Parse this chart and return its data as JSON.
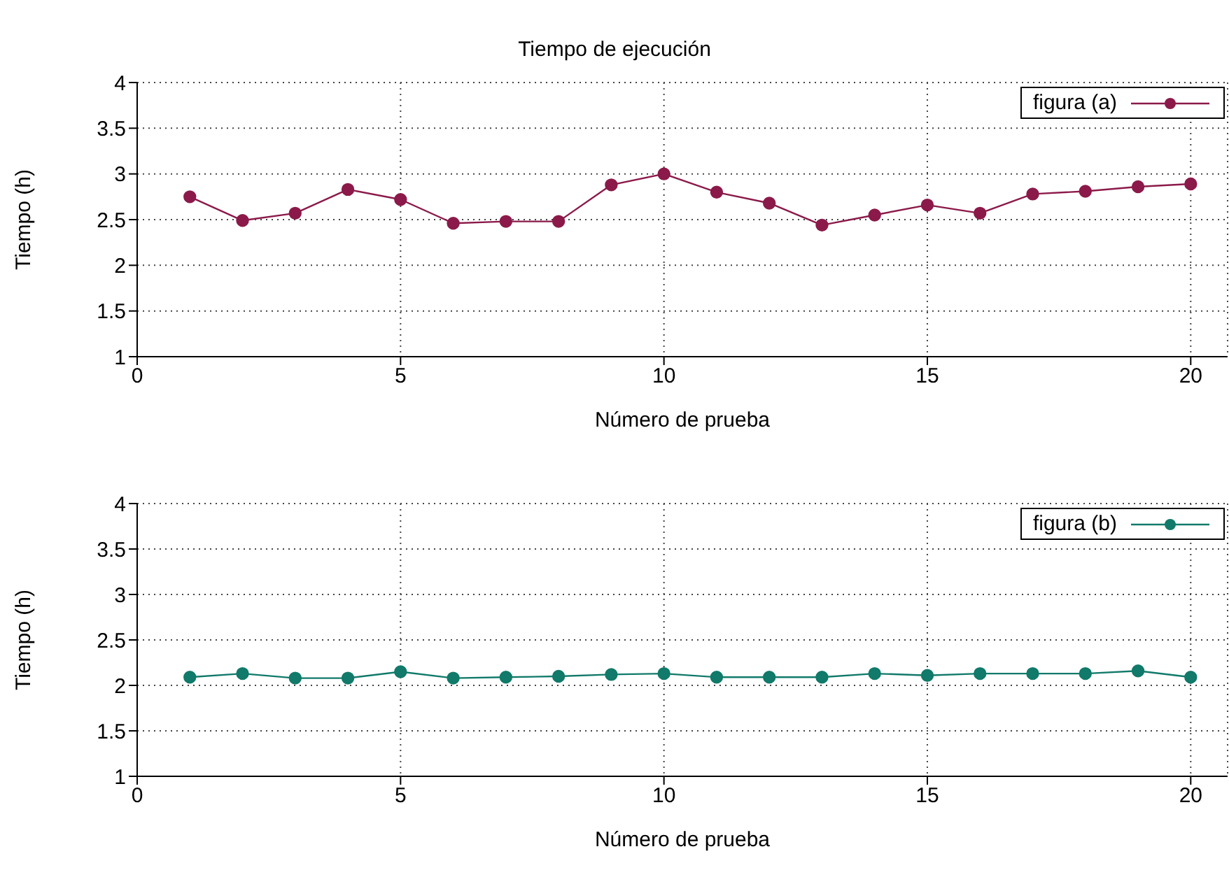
{
  "chart_data": [
    {
      "type": "line",
      "title": "Tiempo de ejecución",
      "xlabel": "Número de prueba",
      "ylabel": "Tiempo (h)",
      "x": [
        1,
        2,
        3,
        4,
        5,
        6,
        7,
        8,
        9,
        10,
        11,
        12,
        13,
        14,
        15,
        16,
        17,
        18,
        19,
        20
      ],
      "series": [
        {
          "name": "figura (a)",
          "color": "#8b1a4a",
          "values": [
            2.75,
            2.49,
            2.57,
            2.83,
            2.72,
            2.46,
            2.48,
            2.48,
            2.88,
            3.0,
            2.8,
            2.68,
            2.44,
            2.55,
            2.66,
            2.57,
            2.78,
            2.81,
            2.86,
            2.89
          ]
        }
      ],
      "xlim": [
        0,
        20.7
      ],
      "xticks": [
        0,
        5,
        10,
        15,
        20
      ],
      "ylim": [
        1,
        4
      ],
      "yticks": [
        1,
        1.5,
        2,
        2.5,
        3,
        3.5,
        4
      ],
      "grid": true,
      "legend": "top right",
      "marker": "circle",
      "line_style": "solid"
    },
    {
      "type": "line",
      "xlabel": "Número de prueba",
      "ylabel": "Tiempo (h)",
      "x": [
        1,
        2,
        3,
        4,
        5,
        6,
        7,
        8,
        9,
        10,
        11,
        12,
        13,
        14,
        15,
        16,
        17,
        18,
        19,
        20
      ],
      "series": [
        {
          "name": "figura (b)",
          "color": "#117a6a",
          "values": [
            2.09,
            2.13,
            2.08,
            2.08,
            2.15,
            2.08,
            2.09,
            2.1,
            2.12,
            2.13,
            2.09,
            2.09,
            2.09,
            2.13,
            2.11,
            2.13,
            2.13,
            2.13,
            2.16,
            2.09
          ]
        }
      ],
      "xlim": [
        0,
        20.7
      ],
      "xticks": [
        0,
        5,
        10,
        15,
        20
      ],
      "ylim": [
        1,
        4
      ],
      "yticks": [
        1,
        1.5,
        2,
        2.5,
        3,
        3.5,
        4
      ],
      "grid": true,
      "legend": "top right",
      "marker": "circle",
      "line_style": "solid"
    }
  ]
}
